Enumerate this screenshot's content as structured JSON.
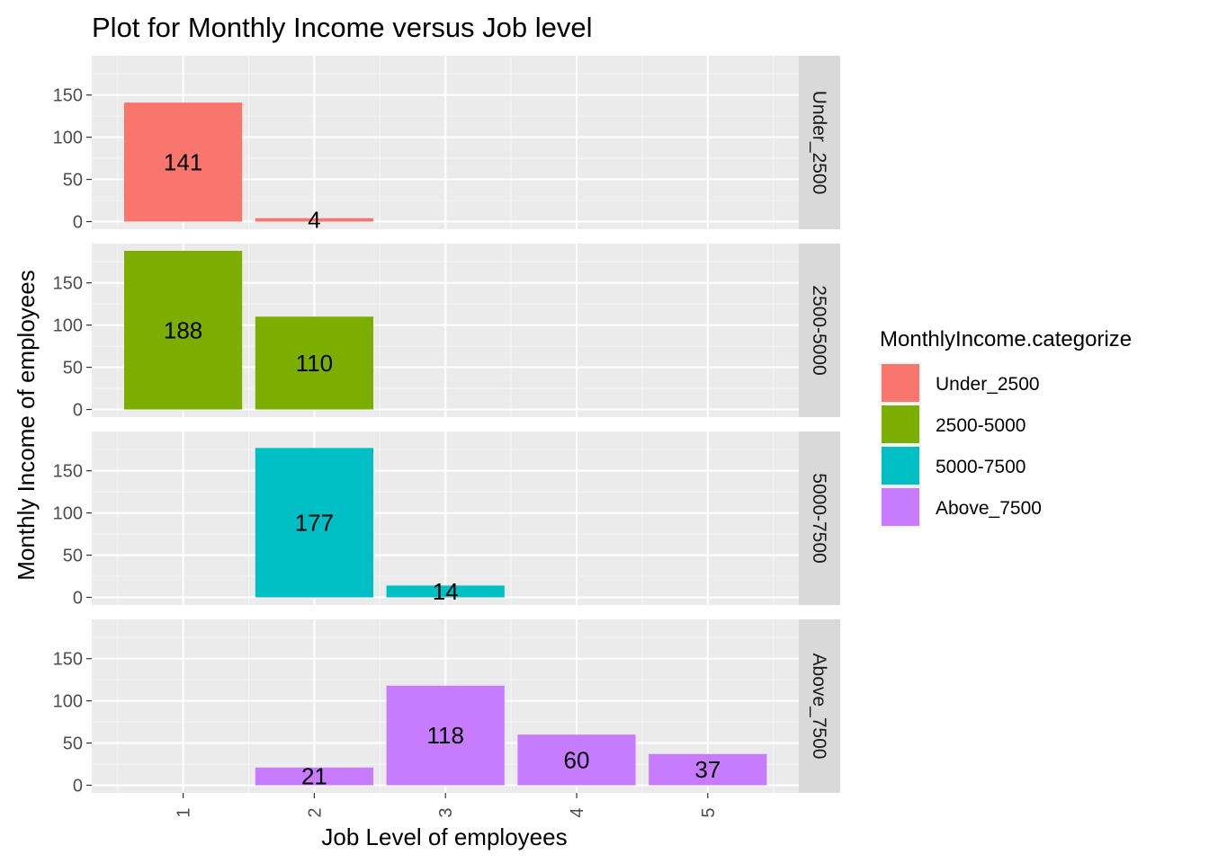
{
  "chart_data": {
    "type": "bar",
    "title": "Plot for Monthly Income versus Job level",
    "xlabel": "Job Level of employees",
    "ylabel": "Monthly Income of employees",
    "x_ticks": [
      "1",
      "2",
      "3",
      "4",
      "5"
    ],
    "y_ticks": [
      "0",
      "50",
      "100",
      "150"
    ],
    "ylim": [
      0,
      190
    ],
    "grid": true,
    "facet_layout": "rows",
    "legend": {
      "title": "MonthlyIncome.categorize",
      "position": "right",
      "entries": [
        {
          "label": "Under_2500",
          "color": "#F8766D"
        },
        {
          "label": "2500-5000",
          "color": "#7CAE00"
        },
        {
          "label": "5000-7500",
          "color": "#00BFC4"
        },
        {
          "label": "Above_7500",
          "color": "#C77CFF"
        }
      ]
    },
    "facets": [
      {
        "label": "Under_2500",
        "color": "#F8766D",
        "bars": [
          {
            "x": 1,
            "value": 141
          },
          {
            "x": 2,
            "value": 4
          }
        ]
      },
      {
        "label": "2500-5000",
        "color": "#7CAE00",
        "bars": [
          {
            "x": 1,
            "value": 188
          },
          {
            "x": 2,
            "value": 110
          }
        ]
      },
      {
        "label": "5000-7500",
        "color": "#00BFC4",
        "bars": [
          {
            "x": 2,
            "value": 177
          },
          {
            "x": 3,
            "value": 14
          }
        ]
      },
      {
        "label": "Above_7500",
        "color": "#C77CFF",
        "bars": [
          {
            "x": 2,
            "value": 21
          },
          {
            "x": 3,
            "value": 118
          },
          {
            "x": 4,
            "value": 60
          },
          {
            "x": 5,
            "value": 37
          }
        ]
      }
    ]
  }
}
